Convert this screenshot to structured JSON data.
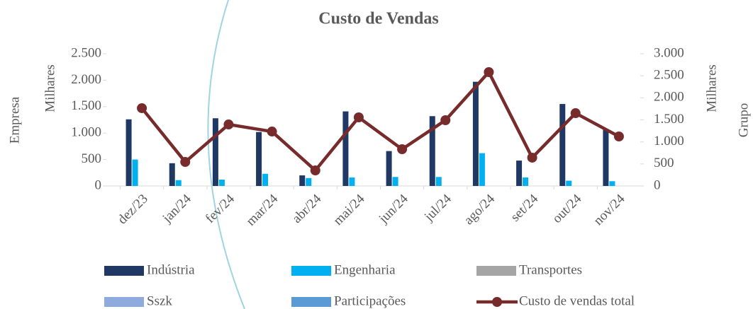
{
  "chart_data": {
    "type": "bar",
    "title": "Custo de Vendas",
    "ylabel": "Milhares",
    "ylabel_group": "Empresa",
    "y2label": "Milhares",
    "y2label_group": "Grupo",
    "categories": [
      "dez/23",
      "jan/24",
      "fev/24",
      "mar/24",
      "abr/24",
      "mai/24",
      "jun/24",
      "jul/24",
      "ago/24",
      "set/24",
      "out/24",
      "nov/24"
    ],
    "series": [
      {
        "name": "Indústria",
        "color": "#203864",
        "type": "bar",
        "values": [
          1260,
          430,
          1280,
          1020,
          200,
          1410,
          660,
          1320,
          1970,
          480,
          1550,
          1060
        ]
      },
      {
        "name": "Engenharia",
        "color": "#00b0f0",
        "type": "bar",
        "values": [
          500,
          110,
          120,
          230,
          150,
          160,
          170,
          170,
          620,
          160,
          100,
          90
        ]
      },
      {
        "name": "Transportes",
        "color": "#a5a5a5",
        "type": "bar",
        "values": [
          0,
          0,
          0,
          0,
          0,
          0,
          0,
          0,
          0,
          0,
          0,
          0
        ]
      },
      {
        "name": "Sszk",
        "color": "#8faadc",
        "type": "bar",
        "values": [
          0,
          0,
          0,
          0,
          0,
          0,
          0,
          0,
          0,
          0,
          0,
          0
        ]
      },
      {
        "name": "Participações",
        "color": "#5b9bd5",
        "type": "bar",
        "values": [
          0,
          0,
          0,
          0,
          0,
          0,
          0,
          0,
          0,
          0,
          0,
          0
        ]
      },
      {
        "name": "Custo de vendas total",
        "color": "#772b2b",
        "type": "line",
        "axis": "y2",
        "values": [
          1765,
          545,
          1395,
          1235,
          353,
          1556,
          834,
          1492,
          2583,
          642,
          1652,
          1123
        ]
      }
    ],
    "ylim": [
      0,
      2500
    ],
    "yticks": [
      0,
      500,
      {
        "value": 1000,
        "label": "1.000"
      },
      {
        "value": 1500,
        "label": "1.500"
      },
      {
        "value": 2000,
        "label": "2.000"
      },
      {
        "value": 2500,
        "label": "2.500"
      }
    ],
    "y2lim": [
      0,
      3000
    ],
    "y2ticks": [
      0,
      500,
      {
        "value": 1000,
        "label": "1.000"
      },
      {
        "value": 1500,
        "label": "1.500"
      },
      {
        "value": 2000,
        "label": "2.000"
      },
      {
        "value": 2500,
        "label": "2.500"
      },
      {
        "value": 3000,
        "label": "3.000"
      }
    ],
    "grid": false
  }
}
